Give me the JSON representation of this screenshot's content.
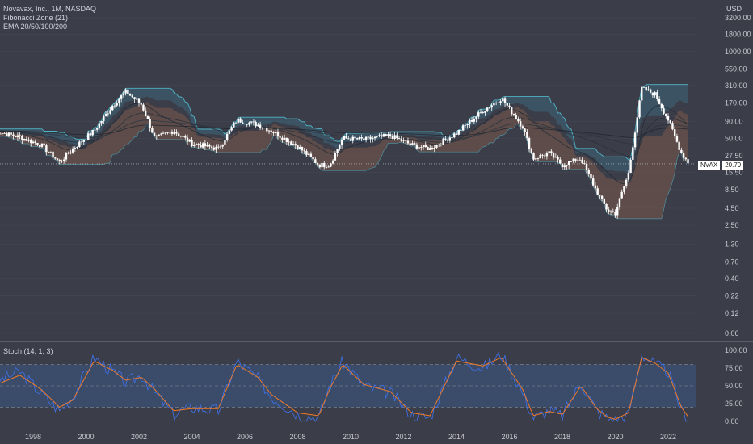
{
  "header": {
    "symbol_line": "Novavax, Inc., 1M, NASDAQ",
    "indicator_1": "Fibonacci Zone (21)",
    "indicator_2": "EMA 20/50/100/200",
    "currency": "USD"
  },
  "price_axis": {
    "labels": [
      "3200.00",
      "1800.00",
      "1000.00",
      "550.00",
      "310.00",
      "170.00",
      "90.00",
      "50.00",
      "27.50",
      "15.50",
      "8.50",
      "4.50",
      "2.50",
      "1.30",
      "0.70",
      "0.40",
      "0.22",
      "0.12",
      "0.06"
    ],
    "scale": "log"
  },
  "last_price": {
    "symbol": "NVAX",
    "value": "20.79"
  },
  "stoch": {
    "title": "Stoch (14, 1, 3)",
    "labels": [
      "100.00",
      "75.00",
      "50.00",
      "25.00",
      "0.00"
    ],
    "band_upper": 80,
    "band_lower": 20
  },
  "time_axis": {
    "labels": [
      "1998",
      "2000",
      "2002",
      "2004",
      "2006",
      "2008",
      "2010",
      "2012",
      "2014",
      "2016",
      "2018",
      "2020",
      "2022"
    ]
  },
  "colors": {
    "background": "#3b3d48",
    "candle": "#ffffff",
    "zone_fill": "#7a5a4a",
    "zone_top": "#4fb3c4",
    "stoch_k": "#3f6fe0",
    "stoch_d": "#f07a2a",
    "band_fill": "#3a5a86"
  },
  "chart_data": [
    {
      "type": "line",
      "title": "Novavax, Inc., 1M, NASDAQ",
      "scale": "log",
      "ylim": [
        0.06,
        3200
      ],
      "x": [
        1996.5,
        1997.5,
        1998.3,
        1999.0,
        1999.5,
        2000.3,
        2001.0,
        2001.5,
        2002.1,
        2002.6,
        2003.3,
        2004.0,
        2005.0,
        2005.7,
        2006.5,
        2007.0,
        2008.0,
        2008.8,
        2009.2,
        2009.7,
        2010.5,
        2011.5,
        2012.3,
        2013.0,
        2014.0,
        2015.0,
        2015.7,
        2016.5,
        2016.9,
        2017.5,
        2018.0,
        2018.7,
        2019.3,
        2019.7,
        2020.0,
        2020.5,
        2021.0,
        2021.5,
        2022.0,
        2022.5,
        2022.8
      ],
      "series": [
        {
          "name": "NVAX",
          "values": [
            65,
            52,
            40,
            22,
            35,
            65,
            155,
            250,
            160,
            50,
            65,
            42,
            35,
            95,
            80,
            65,
            38,
            20,
            20,
            50,
            48,
            55,
            40,
            35,
            60,
            130,
            200,
            75,
            25,
            30,
            20,
            25,
            8,
            4.2,
            3.8,
            15,
            280,
            230,
            95,
            30,
            20.79
          ]
        }
      ]
    },
    {
      "type": "line",
      "title": "Stoch (14, 1, 3)",
      "ylim": [
        0,
        100
      ],
      "x": [
        1996.5,
        1997.5,
        1998.3,
        1999.0,
        1999.5,
        2000.3,
        2001.0,
        2001.5,
        2002.1,
        2002.6,
        2003.3,
        2004.0,
        2005.0,
        2005.7,
        2006.5,
        2007.0,
        2008.0,
        2008.8,
        2009.2,
        2009.7,
        2010.5,
        2011.5,
        2012.3,
        2013.0,
        2014.0,
        2015.0,
        2015.7,
        2016.5,
        2016.9,
        2017.5,
        2018.0,
        2018.7,
        2019.3,
        2019.7,
        2020.0,
        2020.5,
        2021.0,
        2021.5,
        2022.0,
        2022.5,
        2022.8
      ],
      "series": [
        {
          "name": "%K",
          "values": [
            55,
            70,
            40,
            15,
            35,
            90,
            70,
            55,
            65,
            40,
            10,
            20,
            15,
            85,
            60,
            35,
            10,
            5,
            50,
            85,
            50,
            40,
            10,
            5,
            90,
            75,
            95,
            40,
            5,
            15,
            8,
            55,
            15,
            5,
            2,
            10,
            95,
            80,
            70,
            15,
            3
          ]
        },
        {
          "name": "%D",
          "values": [
            50,
            65,
            45,
            20,
            30,
            85,
            72,
            58,
            62,
            45,
            15,
            18,
            18,
            80,
            62,
            38,
            12,
            8,
            45,
            80,
            52,
            42,
            12,
            8,
            85,
            78,
            90,
            45,
            8,
            14,
            10,
            50,
            18,
            6,
            3,
            12,
            90,
            82,
            68,
            20,
            4
          ]
        }
      ]
    }
  ]
}
